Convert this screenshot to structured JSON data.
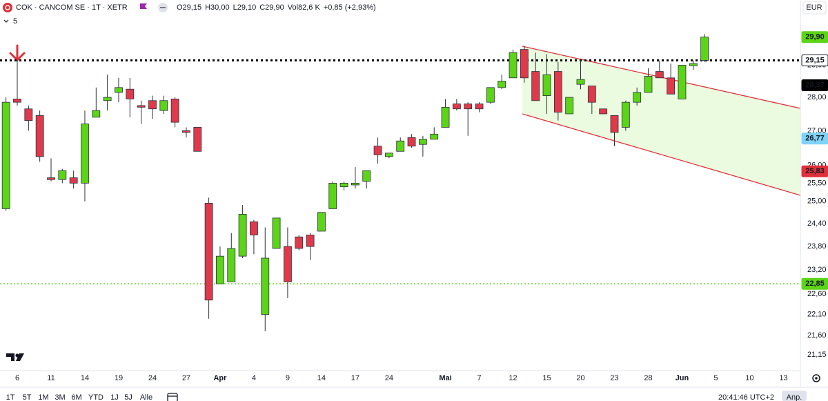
{
  "chart_data": {
    "type": "candlestick",
    "symbol": "COK · CANCOM SE · 1T · XETR",
    "ohlc_text": [
      "O29,15",
      "H30,00",
      "L29,10",
      "C29,90",
      "Vol82,6 K",
      "+0,85 (+2,93%)"
    ],
    "indicator_count": "5",
    "currency": "EUR",
    "log_scale": true,
    "grid": false,
    "up_color": "#5cd417",
    "down_color": "#de3a4c",
    "categories": [
      null,
      "6",
      null,
      null,
      "11",
      null,
      null,
      "14",
      null,
      null,
      "19",
      null,
      null,
      "24",
      null,
      null,
      "27",
      null,
      null,
      "Apr",
      null,
      null,
      "4",
      null,
      null,
      "9",
      null,
      null,
      "14",
      null,
      null,
      "17",
      null,
      null,
      "24",
      null,
      null,
      null,
      null,
      "Mai",
      null,
      null,
      "7",
      null,
      null,
      "12",
      null,
      null,
      "15",
      null,
      null,
      "20",
      null,
      null,
      "23",
      null,
      null,
      "28",
      null,
      null,
      "Jun",
      null,
      null,
      "5",
      null,
      null,
      "10",
      null,
      null,
      "13"
    ],
    "open": [
      24.8,
      27.95,
      27.65,
      27.45,
      25.65,
      25.6,
      25.65,
      25.5,
      27.4,
      27.9,
      28.15,
      28.25,
      27.75,
      27.9,
      27.6,
      27.95,
      27.0,
      27.1,
      24.95,
      22.85,
      22.9,
      23.55,
      24.45,
      22.1,
      23.75,
      23.8,
      24.05,
      24.1,
      24.2,
      24.8,
      25.4,
      25.45,
      25.55,
      26.55,
      26.25,
      26.4,
      26.8,
      26.6,
      26.75,
      27.1,
      27.8,
      27.8,
      27.8,
      27.85,
      28.3,
      28.6,
      29.5,
      28.8,
      28.05,
      28.8,
      27.5,
      28.4,
      28.35,
      27.65,
      27.45,
      27.1,
      27.85,
      28.15,
      28.8,
      28.6,
      27.95,
      28.98,
      29.15,
      null,
      null,
      null,
      null,
      null,
      null,
      null
    ],
    "high": [
      28.0,
      29.15,
      27.75,
      27.6,
      26.2,
      25.9,
      25.85,
      27.6,
      28.3,
      28.7,
      28.6,
      28.6,
      27.9,
      28.05,
      28.05,
      28.0,
      27.1,
      27.1,
      25.1,
      23.8,
      24.15,
      24.9,
      24.5,
      24.3,
      24.55,
      24.3,
      24.1,
      24.15,
      24.7,
      25.55,
      25.55,
      25.95,
      25.85,
      26.8,
      26.35,
      26.8,
      26.9,
      26.85,
      27.1,
      27.95,
      27.95,
      27.85,
      27.85,
      28.3,
      28.7,
      29.5,
      29.6,
      29.4,
      29.35,
      29.1,
      28.0,
      29.2,
      28.35,
      27.65,
      27.45,
      27.9,
      28.3,
      28.9,
      29.15,
      29.05,
      29.0,
      29.15,
      30.0,
      null,
      null,
      null,
      null,
      null,
      null,
      null
    ],
    "low": [
      24.75,
      27.75,
      27.0,
      26.1,
      25.55,
      25.5,
      25.35,
      25.0,
      27.4,
      27.6,
      27.85,
      27.4,
      27.2,
      27.35,
      27.5,
      27.1,
      26.8,
      26.4,
      22.0,
      22.85,
      22.9,
      23.5,
      23.6,
      21.7,
      23.75,
      22.5,
      23.7,
      23.45,
      24.2,
      24.8,
      25.3,
      25.35,
      25.35,
      26.05,
      26.2,
      26.4,
      26.5,
      26.25,
      26.75,
      27.1,
      27.6,
      26.85,
      27.55,
      27.8,
      28.25,
      28.6,
      28.45,
      27.9,
      27.5,
      27.3,
      27.5,
      28.25,
      27.5,
      27.5,
      26.55,
      27.0,
      27.75,
      28.15,
      28.6,
      28.1,
      27.95,
      28.85,
      29.1,
      null,
      null,
      null,
      null,
      null,
      null,
      null
    ],
    "close": [
      27.85,
      27.85,
      27.3,
      26.25,
      25.6,
      25.85,
      25.5,
      27.2,
      27.6,
      28.0,
      28.3,
      27.95,
      27.7,
      27.65,
      27.9,
      27.25,
      26.95,
      26.4,
      22.45,
      23.55,
      23.75,
      24.65,
      24.1,
      23.5,
      24.55,
      22.9,
      23.75,
      23.8,
      24.7,
      25.5,
      25.5,
      25.5,
      25.85,
      26.3,
      26.35,
      26.7,
      26.55,
      26.75,
      26.9,
      27.7,
      27.65,
      27.65,
      27.65,
      28.3,
      28.5,
      29.4,
      28.6,
      27.9,
      28.7,
      27.55,
      28.0,
      28.55,
      27.85,
      27.5,
      26.95,
      27.85,
      28.15,
      28.65,
      28.6,
      28.1,
      29.0,
      29.05,
      29.9,
      null,
      null,
      null,
      null,
      null,
      null,
      null
    ],
    "ylim": [
      20.82,
      30.21
    ],
    "yticks": [
      {
        "value": 29,
        "label": "29,00"
      },
      {
        "value": 28,
        "label": "28,00"
      },
      {
        "value": 27,
        "label": "27,00"
      },
      {
        "value": 26,
        "label": "26,00"
      },
      {
        "value": 25.5,
        "label": "25,50"
      },
      {
        "value": 25,
        "label": "25,00"
      },
      {
        "value": 24.4,
        "label": "24,40"
      },
      {
        "value": 23.8,
        "label": "23,80"
      },
      {
        "value": 23.2,
        "label": "23,20"
      },
      {
        "value": 22.6,
        "label": "22,60"
      },
      {
        "value": 22.1,
        "label": "22,10"
      },
      {
        "value": 21.6,
        "label": "21,60"
      },
      {
        "value": 21.15,
        "label": "21,15"
      }
    ],
    "hlines": [
      {
        "value": 29.15,
        "color": "#000000"
      },
      {
        "value": 22.85,
        "color": "#4cd20d"
      }
    ],
    "price_labels": [
      {
        "value": 29.9,
        "label": "29,90",
        "color": "#5cd417",
        "text_color": "#000000"
      },
      {
        "value": 29.15,
        "label": "29,15",
        "color": "#ffffff",
        "text_color": "#000000"
      },
      {
        "value": 28.37,
        "label": "28,37",
        "color": "#000000",
        "text_color": "#ffffff"
      },
      {
        "value": 26.77,
        "label": "26,77",
        "color": "#7fd3f7",
        "text_color": "#000000"
      },
      {
        "value": 25.83,
        "label": "25,83",
        "color": "#e0303a",
        "text_color": "#ffffff"
      },
      {
        "value": 22.85,
        "label": "22,85",
        "color": "#5cd417",
        "text_color": "#000000"
      }
    ]
  },
  "toolbar": {
    "ranges": [
      "1T",
      "5T",
      "1M",
      "3M",
      "6M",
      "YTD",
      "1J",
      "5J",
      "Alle"
    ],
    "time": "20:41:46 UTC+2",
    "adjust": "Anp."
  }
}
